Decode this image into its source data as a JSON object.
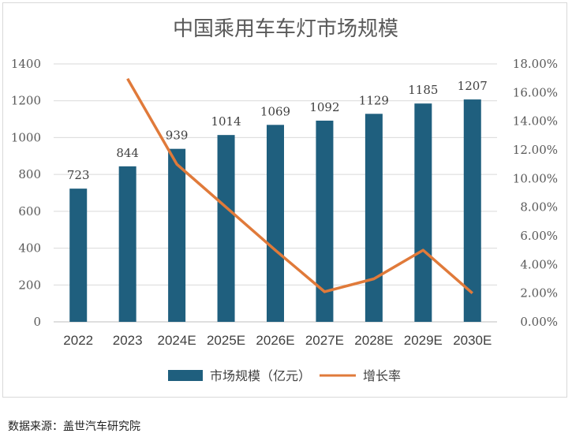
{
  "chart_data": {
    "type": "bar+line",
    "title": "中国乘用车车灯市场规模",
    "categories": [
      "2022",
      "2023",
      "2024E",
      "2025E",
      "2026E",
      "2027E",
      "2028E",
      "2029E",
      "2030E"
    ],
    "series": [
      {
        "name": "市场规模（亿元）",
        "type": "bar",
        "axis": "left",
        "color": "#1f5f7e",
        "values": [
          723,
          844,
          939,
          1014,
          1069,
          1092,
          1129,
          1185,
          1207
        ],
        "labels": [
          "723",
          "844",
          "939",
          "1014",
          "1069",
          "1092",
          "1129",
          "1185",
          "1207"
        ]
      },
      {
        "name": "增长率",
        "type": "line",
        "axis": "right",
        "color": "#e07a3a",
        "values": [
          null,
          16.97,
          11.0,
          8.0,
          5.0,
          2.1,
          3.0,
          5.0,
          2.0
        ]
      }
    ],
    "left_axis": {
      "min": 0,
      "max": 1400,
      "ticks": [
        "0",
        "200",
        "400",
        "600",
        "800",
        "1000",
        "1200",
        "1400"
      ]
    },
    "right_axis": {
      "min": 0,
      "max": 18,
      "ticks": [
        "0.00%",
        "2.00%",
        "4.00%",
        "6.00%",
        "8.00%",
        "10.00%",
        "12.00%",
        "14.00%",
        "16.00%",
        "18.00%"
      ]
    },
    "grid": true,
    "legend_position": "bottom"
  },
  "source_note": "数据来源：盖世汽车研究院"
}
